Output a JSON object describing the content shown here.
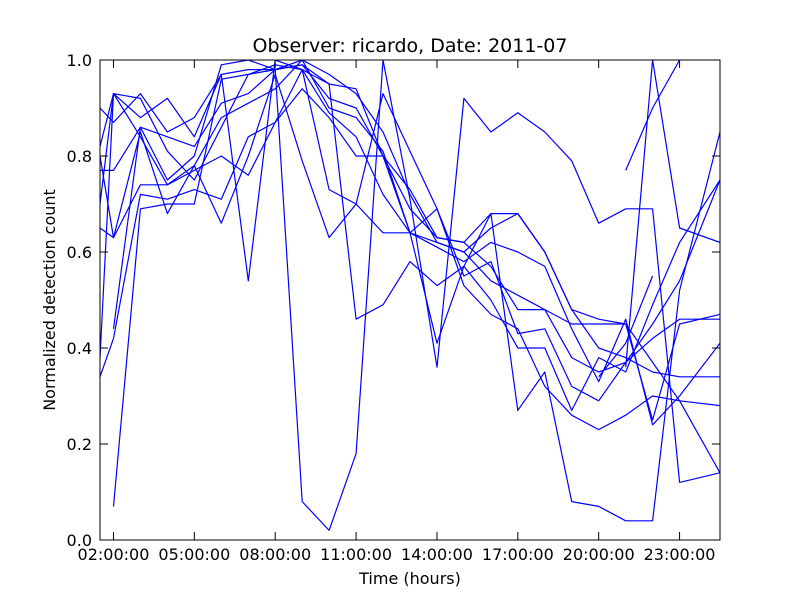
{
  "chart_data": {
    "type": "line",
    "title": "Observer: ricardo, Date: 2011-07",
    "xlabel": "Time (hours)",
    "ylabel": "Normalized detection count",
    "xlim": [
      1.5,
      24.5
    ],
    "ylim": [
      0.0,
      1.0
    ],
    "x_ticks": [
      2,
      5,
      8,
      11,
      14,
      17,
      20,
      23
    ],
    "x_tick_labels": [
      "02:00:00",
      "05:00:00",
      "08:00:00",
      "11:00:00",
      "14:00:00",
      "17:00:00",
      "20:00:00",
      "23:00:00"
    ],
    "y_ticks": [
      0.0,
      0.2,
      0.4,
      0.6,
      0.8,
      1.0
    ],
    "y_tick_labels": [
      "0.0",
      "0.2",
      "0.4",
      "0.6",
      "0.8",
      "1.0"
    ],
    "grid": false,
    "legend": false,
    "series_color": "#0000ff",
    "series": [
      {
        "x": [
          1.5,
          2,
          3,
          4,
          5,
          6,
          7,
          8,
          9,
          10,
          11,
          12,
          13,
          14,
          15,
          16,
          17,
          18,
          19,
          20,
          21,
          22,
          23,
          24.5
        ],
        "values": [
          0.9,
          0.87,
          0.93,
          0.85,
          0.88,
          0.97,
          0.98,
          0.98,
          1.0,
          0.97,
          0.93,
          0.85,
          0.72,
          0.62,
          0.6,
          0.65,
          0.68,
          0.6,
          0.48,
          0.46,
          0.45,
          0.37,
          0.29,
          0.28
        ]
      },
      {
        "x": [
          1.5,
          2,
          3,
          4,
          5,
          6,
          7,
          8,
          9,
          10,
          11,
          12,
          13,
          14,
          15,
          16,
          17,
          18,
          19,
          20,
          21,
          22,
          23,
          24.5
        ],
        "values": [
          0.82,
          0.93,
          0.92,
          0.81,
          0.75,
          0.86,
          0.97,
          0.99,
          0.98,
          0.95,
          0.94,
          0.8,
          0.73,
          0.63,
          0.62,
          0.68,
          0.68,
          0.6,
          0.48,
          0.4,
          0.38,
          0.35,
          0.34,
          0.34
        ]
      },
      {
        "x": [
          1.5,
          2,
          3,
          4,
          5,
          6,
          7,
          8,
          9,
          10,
          11,
          12,
          13,
          14,
          15,
          16,
          17,
          18,
          19,
          20,
          21,
          22,
          23,
          24.5
        ],
        "values": [
          0.77,
          0.77,
          0.86,
          0.84,
          0.82,
          0.91,
          0.93,
          0.98,
          0.99,
          0.92,
          0.9,
          0.8,
          0.69,
          0.63,
          0.62,
          0.57,
          0.48,
          0.48,
          0.38,
          0.35,
          0.37,
          0.42,
          0.46,
          0.46
        ]
      },
      {
        "x": [
          1.5,
          2,
          3,
          4,
          5,
          6,
          7,
          8,
          9,
          10,
          11,
          12,
          13,
          14,
          15,
          16,
          17,
          18,
          19,
          20,
          21,
          22,
          23,
          24.5
        ],
        "values": [
          0.7,
          0.93,
          0.84,
          0.74,
          0.78,
          0.88,
          0.91,
          0.94,
          1.0,
          0.9,
          0.88,
          0.81,
          0.64,
          0.61,
          0.58,
          0.62,
          0.6,
          0.57,
          0.44,
          0.33,
          0.46,
          0.24,
          0.3,
          0.41
        ]
      },
      {
        "x": [
          1.5,
          2,
          3,
          4,
          5,
          6,
          7,
          8,
          9,
          10,
          11,
          12,
          13,
          14,
          15,
          16,
          17,
          18,
          19,
          20,
          21,
          22,
          23,
          24.5
        ],
        "values": [
          0.65,
          0.63,
          0.74,
          0.74,
          0.77,
          0.8,
          0.76,
          0.87,
          0.94,
          0.88,
          0.8,
          0.8,
          0.64,
          0.62,
          0.6,
          0.54,
          0.51,
          0.48,
          0.45,
          0.45,
          0.45,
          0.25,
          0.45,
          0.47
        ]
      },
      {
        "x": [
          1.5,
          2,
          3,
          4,
          5,
          6,
          7,
          8,
          9,
          10,
          11,
          12,
          13,
          14,
          15,
          16,
          17,
          18,
          19,
          20,
          21,
          22,
          23,
          24.5
        ],
        "values": [
          0.34,
          0.42,
          0.72,
          0.71,
          0.73,
          0.71,
          0.84,
          0.87,
          0.98,
          0.89,
          0.84,
          0.72,
          0.64,
          0.69,
          0.55,
          0.58,
          0.43,
          0.44,
          0.32,
          0.29,
          0.37,
          0.45,
          0.54,
          0.75
        ]
      },
      {
        "x": [
          1.5,
          2,
          3,
          4,
          5,
          6,
          7,
          8,
          9,
          10,
          11,
          12,
          13,
          14,
          15,
          16,
          17,
          18,
          19,
          20,
          21,
          22,
          23,
          24.5
        ],
        "values": [
          0.38,
          0.93,
          0.88,
          0.92,
          0.84,
          0.97,
          0.54,
          1.0,
          0.98,
          0.73,
          0.7,
          0.93,
          0.81,
          0.69,
          0.53,
          0.47,
          0.44,
          0.32,
          0.26,
          0.23,
          0.26,
          0.3,
          0.29,
          0.14
        ]
      },
      {
        "x": [
          1.5,
          2,
          3,
          4,
          5,
          6,
          7,
          8,
          9,
          10,
          11,
          12,
          13,
          14,
          15,
          16,
          17,
          18,
          19,
          20,
          21,
          22,
          23,
          24.5
        ],
        "values": [
          0.8,
          0.63,
          0.85,
          0.68,
          0.78,
          0.66,
          0.8,
          0.97,
          0.79,
          0.63,
          0.7,
          0.64,
          0.64,
          0.41,
          0.57,
          0.5,
          0.4,
          0.4,
          0.27,
          0.38,
          0.35,
          0.49,
          0.62,
          0.75
        ]
      },
      {
        "x": [
          2,
          3,
          4,
          5,
          6,
          7,
          8,
          9,
          10,
          11,
          12,
          13,
          14,
          15,
          16,
          17,
          18,
          19,
          20,
          21,
          22,
          23,
          24.5
        ],
        "values": [
          0.07,
          0.69,
          0.7,
          0.7,
          0.96,
          0.97,
          0.98,
          0.08,
          0.02,
          0.18,
          1.0,
          0.71,
          0.36,
          0.92,
          0.85,
          0.89,
          0.85,
          0.79,
          0.66,
          0.69,
          0.69,
          0.12,
          0.14
        ]
      },
      {
        "x": [
          2,
          3,
          4,
          5,
          6,
          7,
          8,
          9,
          10,
          11,
          12,
          13,
          14,
          15,
          16,
          17,
          18,
          19,
          20,
          21,
          22,
          23,
          24.5
        ],
        "values": [
          0.44,
          0.86,
          0.75,
          0.8,
          0.99,
          1.0,
          0.98,
          0.99,
          0.95,
          0.46,
          0.49,
          0.58,
          0.53,
          0.57,
          0.68,
          0.27,
          0.35,
          0.08,
          0.07,
          0.04,
          0.04,
          0.52,
          0.85
        ]
      },
      {
        "x": [
          21,
          22,
          23
        ],
        "values": [
          0.77,
          0.9,
          1.0
        ]
      },
      {
        "x": [
          20,
          21,
          22
        ],
        "values": [
          0.34,
          0.41,
          0.55
        ]
      },
      {
        "x": [
          21,
          22,
          23,
          24.5
        ],
        "values": [
          0.36,
          1.0,
          0.65,
          0.62
        ]
      }
    ]
  }
}
